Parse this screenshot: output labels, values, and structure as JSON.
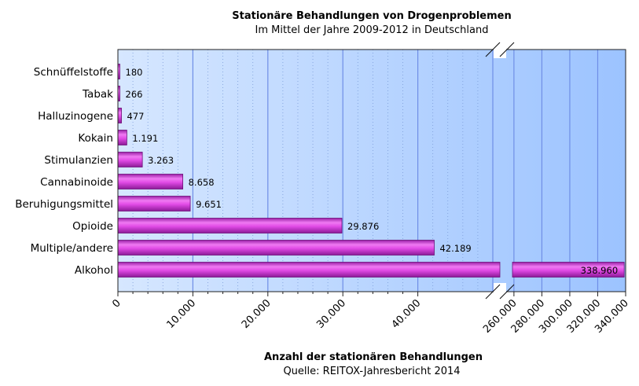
{
  "chart_data": {
    "type": "bar",
    "orientation": "horizontal",
    "title": "Stationäre Behandlungen von Drogenproblemen",
    "subtitle": "Im Mittel der Jahre 2009-2012 in Deutschland",
    "xlabel": "Anzahl der stationären Behandlungen",
    "source": "Quelle: REITOX-Jahresbericht 2014",
    "categories": [
      "Schnüffelstoffe",
      "Tabak",
      "Halluzinogene",
      "Kokain",
      "Stimulanzien",
      "Cannabinoide",
      "Beruhigungsmittel",
      "Opioide",
      "Multiple/andere",
      "Alkohol"
    ],
    "values": [
      180,
      266,
      477,
      1191,
      3263,
      8658,
      9651,
      29876,
      42189,
      338960
    ],
    "value_labels": [
      "180",
      "266",
      "477",
      "1.191",
      "3.263",
      "8.658",
      "9.651",
      "29.876",
      "42.189",
      "338.960"
    ],
    "axis_break": {
      "from": 50000,
      "to": 255000
    },
    "xlim_lower": [
      0,
      50000
    ],
    "xlim_upper": [
      255000,
      340000
    ],
    "ticks_lower": [
      0,
      10000,
      20000,
      30000,
      40000
    ],
    "tick_labels_lower": [
      "0",
      "10.000",
      "20.000",
      "30.000",
      "40.000"
    ],
    "ticks_upper": [
      260000,
      280000,
      300000,
      320000,
      340000
    ],
    "tick_labels_upper": [
      "260.000",
      "280.000",
      "300.000",
      "320.000",
      "340.000"
    ],
    "grid": true,
    "bar_color": "#e040e8",
    "background_colors": [
      "#d4e6ff",
      "#9fc5ff"
    ]
  }
}
